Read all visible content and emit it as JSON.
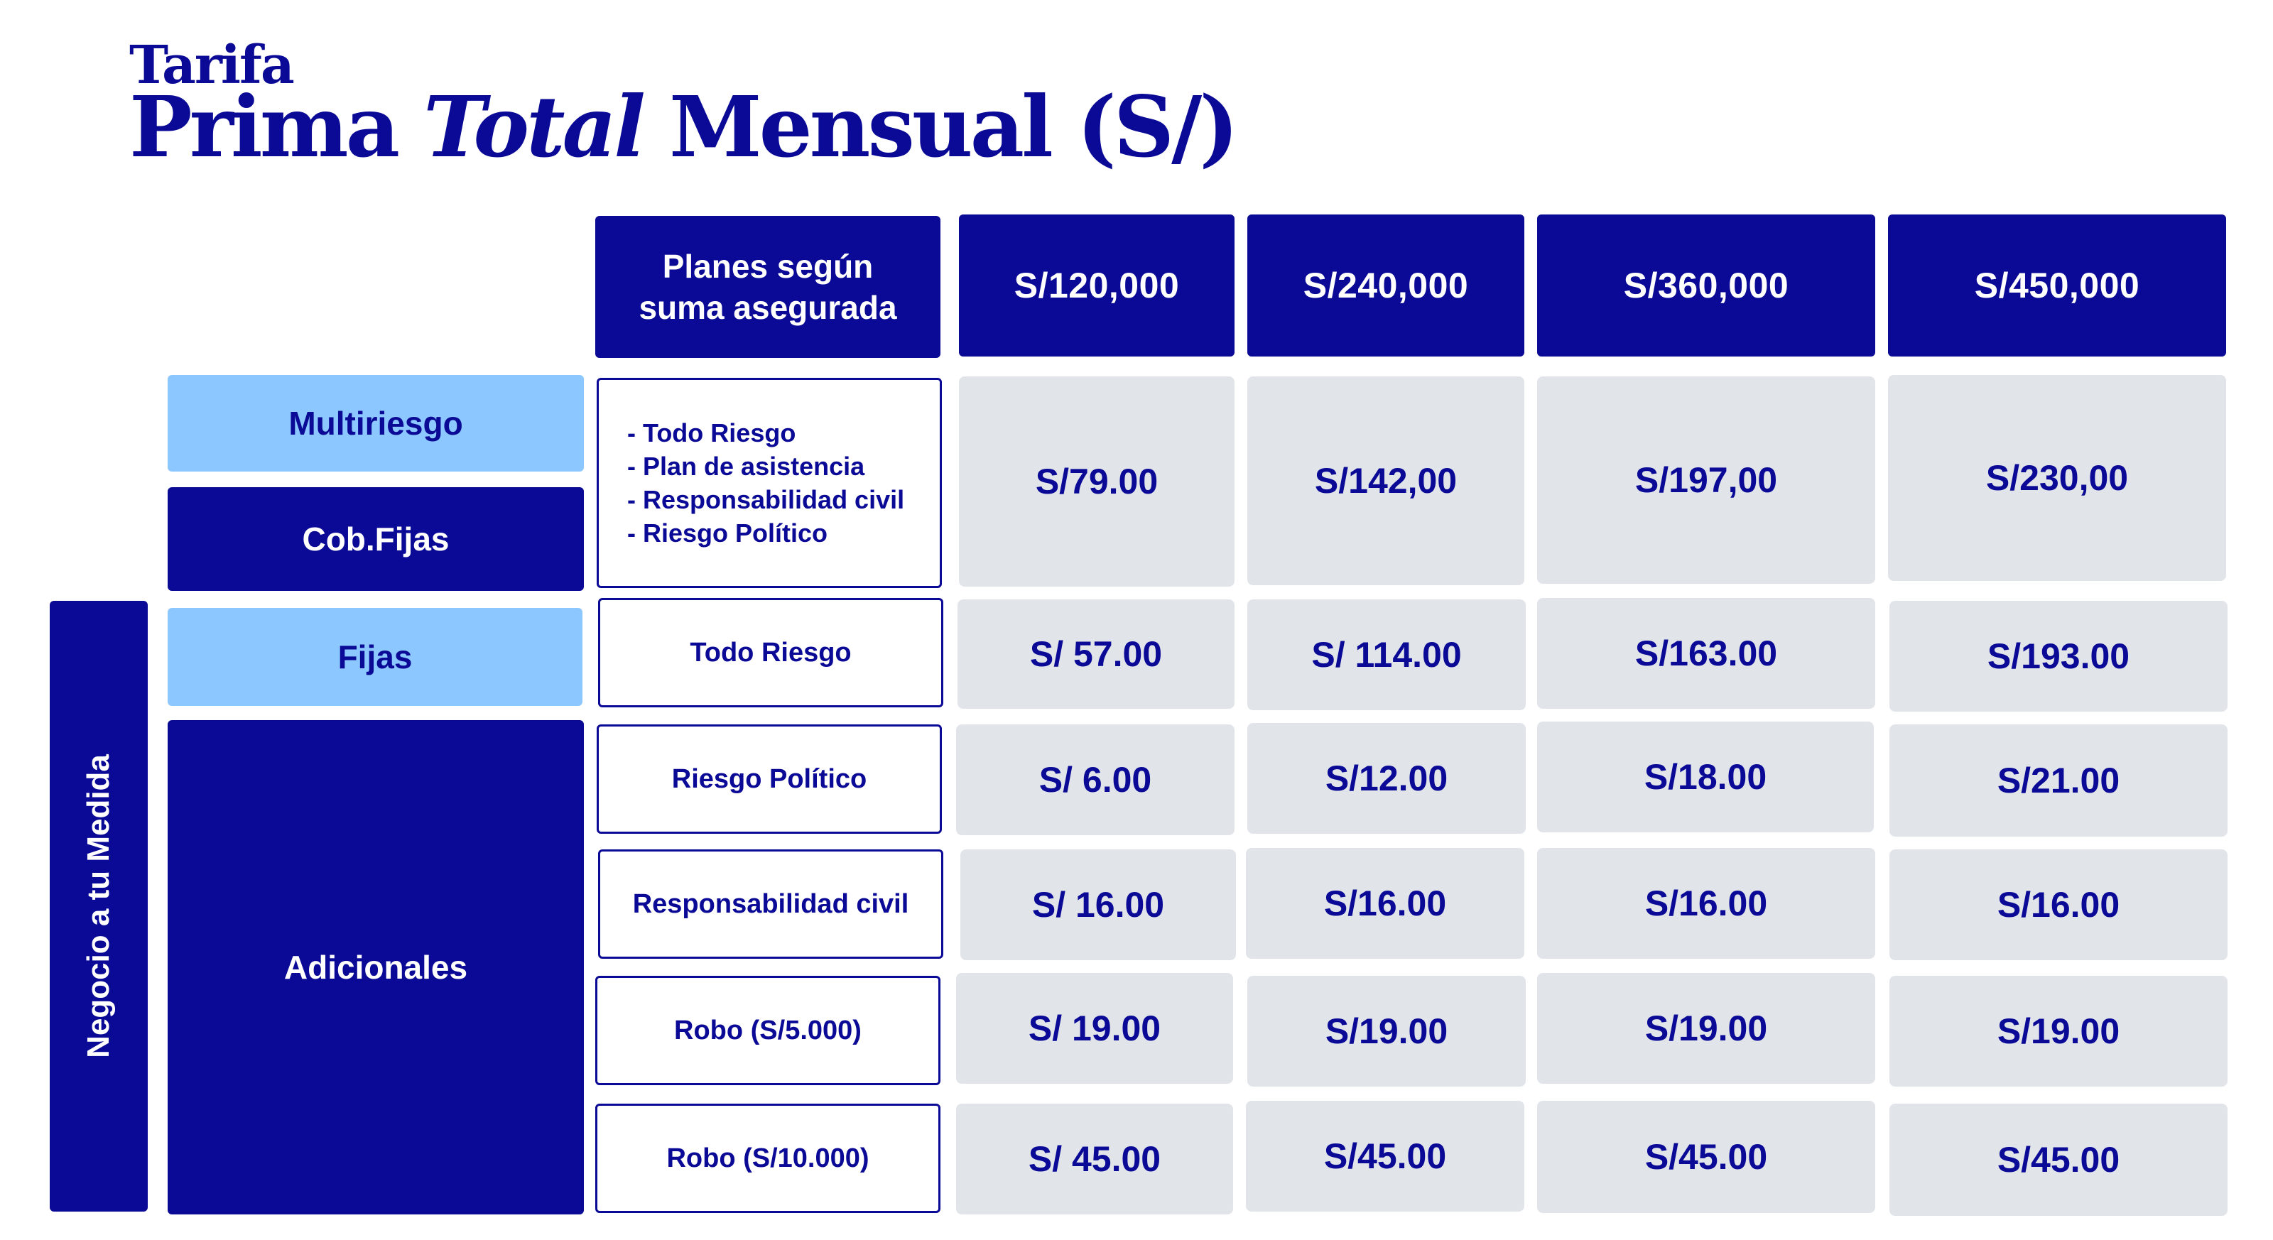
{
  "title": {
    "line1": "Tarifa",
    "line2_part1": "Prima ",
    "line2_em": "Total",
    "line2_part2": " Mensual (S/)"
  },
  "header": {
    "plans_label": "Planes según suma asegurada",
    "amounts": [
      "S/120,000",
      "S/240,000",
      "S/360,000",
      "S/450,000"
    ]
  },
  "side_label": "Negocio a tu Medida",
  "categories": {
    "multiriesgo": "Multiriesgo",
    "cob_fijas": "Cob.Fijas",
    "fijas": "Fijas",
    "adicionales": "Adicionales"
  },
  "multiriesgo_bullets": [
    "Todo Riesgo",
    "Plan de asistencia",
    "Responsabilidad civil",
    "Riesgo Político"
  ],
  "rows": [
    {
      "plan": "",
      "values": [
        "S/79.00",
        "S/142,00",
        "S/197,00",
        "S/230,00"
      ]
    },
    {
      "plan": "Todo Riesgo",
      "values": [
        "S/ 57.00",
        "S/ 114.00",
        "S/163.00",
        "S/193.00"
      ]
    },
    {
      "plan": "Riesgo Político",
      "values": [
        "S/ 6.00",
        "S/12.00",
        "S/18.00",
        "S/21.00"
      ]
    },
    {
      "plan": "Responsabilidad civil",
      "values": [
        "S/ 16.00",
        "S/16.00",
        "S/16.00",
        "S/16.00"
      ]
    },
    {
      "plan": "Robo (S/5.000)",
      "values": [
        "S/ 19.00",
        "S/19.00",
        "S/19.00",
        "S/19.00"
      ]
    },
    {
      "plan": "Robo (S/10.000)",
      "values": [
        "S/ 45.00",
        "S/45.00",
        "S/45.00",
        "S/45.00"
      ]
    }
  ],
  "colors": {
    "navy": "#0a0a96",
    "light_blue": "#8cc8ff",
    "cell_gray": "#e1e5ea"
  }
}
